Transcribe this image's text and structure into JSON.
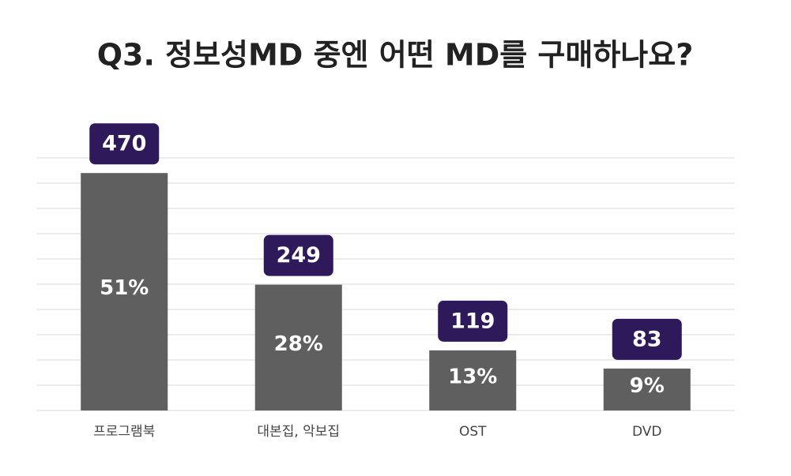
{
  "chart_data": {
    "type": "bar",
    "title": "Q3. 정보성MD 중엔 어떤 MD를 구매하나요?",
    "categories": [
      "프로그램북",
      "대본집, 악보집",
      "OST",
      "DVD"
    ],
    "values": [
      470,
      249,
      119,
      83
    ],
    "share_labels": [
      "51%",
      "28%",
      "13%",
      "9%"
    ],
    "color": "#5f5f5f",
    "label_color": "#2e1a5a",
    "ylim": [
      0,
      500
    ],
    "yticks": [
      0,
      50,
      100,
      150,
      200,
      250,
      300,
      350,
      400,
      450,
      500
    ],
    "grid": true
  }
}
